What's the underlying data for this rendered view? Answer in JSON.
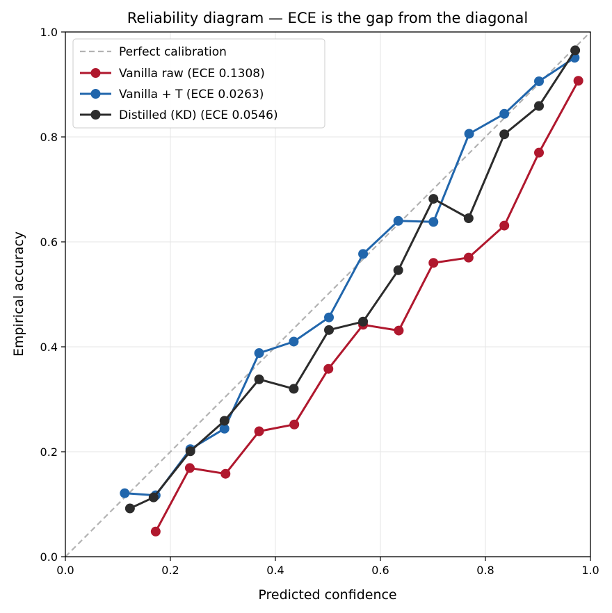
{
  "chart_data": {
    "type": "line",
    "title": "Reliability diagram — ECE is the gap from the diagonal",
    "xlabel": "Predicted confidence",
    "ylabel": "Empirical accuracy",
    "xlim": [
      0.0,
      1.0
    ],
    "ylim": [
      0.0,
      1.0
    ],
    "xticks": [
      "0.0",
      "0.2",
      "0.4",
      "0.6",
      "0.8",
      "1.0"
    ],
    "yticks": [
      "0.0",
      "0.2",
      "0.4",
      "0.6",
      "0.8",
      "1.0"
    ],
    "grid": true,
    "legend_position": "upper-left",
    "reference_line": {
      "name": "Perfect calibration",
      "color": "#b3b3b3",
      "style": "dashed",
      "x": [
        0.0,
        1.0
      ],
      "y": [
        0.0,
        1.0
      ]
    },
    "series": [
      {
        "name": "Vanilla raw  (ECE 0.1308)",
        "color": "#b0182e",
        "x": [
          0.172,
          0.237,
          0.305,
          0.369,
          0.436,
          0.501,
          0.567,
          0.635,
          0.701,
          0.768,
          0.836,
          0.902,
          0.977
        ],
        "y": [
          0.048,
          0.169,
          0.158,
          0.239,
          0.252,
          0.358,
          0.442,
          0.431,
          0.56,
          0.57,
          0.631,
          0.77,
          0.907
        ]
      },
      {
        "name": "Vanilla + T  (ECE 0.0263)",
        "color": "#2166ac",
        "x": [
          0.113,
          0.172,
          0.238,
          0.303,
          0.369,
          0.435,
          0.502,
          0.567,
          0.634,
          0.701,
          0.769,
          0.836,
          0.902,
          0.97
        ],
        "y": [
          0.121,
          0.117,
          0.205,
          0.244,
          0.388,
          0.41,
          0.456,
          0.577,
          0.64,
          0.638,
          0.806,
          0.844,
          0.906,
          0.951
        ]
      },
      {
        "name": "Distilled (KD)  (ECE 0.0546)",
        "color": "#2c2c2c",
        "x": [
          0.123,
          0.168,
          0.238,
          0.303,
          0.369,
          0.435,
          0.502,
          0.567,
          0.634,
          0.701,
          0.768,
          0.836,
          0.902,
          0.971
        ],
        "y": [
          0.092,
          0.113,
          0.201,
          0.259,
          0.338,
          0.32,
          0.432,
          0.448,
          0.546,
          0.682,
          0.645,
          0.805,
          0.859,
          0.965
        ]
      }
    ]
  }
}
